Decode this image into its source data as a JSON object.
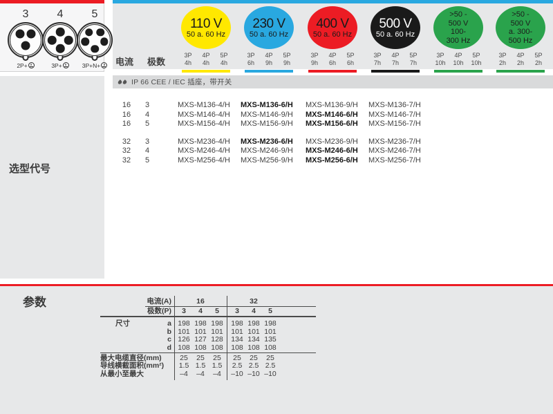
{
  "colors": {
    "accent_red": "#ec1c24",
    "accent_blue": "#29a8e0",
    "accent_yellow": "#ffe800",
    "accent_green": "#2aa34c",
    "accent_black": "#1a1a1a",
    "panel_gray": "#e7e8e9"
  },
  "connector_panel": {
    "items": [
      {
        "number": "3",
        "pins": 3,
        "label": "2P+"
      },
      {
        "number": "4",
        "pins": 4,
        "label": "3P+"
      },
      {
        "number": "5",
        "pins": 5,
        "label": "3P+N+"
      }
    ]
  },
  "selection": {
    "sidebar_label": "选型代号",
    "current_header": "电流",
    "poles_header": "极数",
    "voltage_groups": [
      {
        "lines": [
          "110 V",
          "50 a. 60 Hz"
        ],
        "color": "#ffe800",
        "text": "#1a1a1a",
        "cols": [
          [
            "3P",
            "4h"
          ],
          [
            "4P",
            "4h"
          ],
          [
            "5P",
            "4h"
          ]
        ]
      },
      {
        "lines": [
          "230 V",
          "50 a. 60 Hz"
        ],
        "color": "#29a8e0",
        "text": "#1a1a1a",
        "cols": [
          [
            "3P",
            "6h"
          ],
          [
            "4P",
            "9h"
          ],
          [
            "5P",
            "9h"
          ]
        ]
      },
      {
        "lines": [
          "400 V",
          "50 a. 60 Hz"
        ],
        "color": "#ec1c24",
        "text": "#1a1a1a",
        "cols": [
          [
            "3P",
            "9h"
          ],
          [
            "4P",
            "6h"
          ],
          [
            "5P",
            "6h"
          ]
        ]
      },
      {
        "lines": [
          "500 V",
          "50 a. 60 Hz"
        ],
        "color": "#1a1a1a",
        "text": "#ffffff",
        "cols": [
          [
            "3P",
            "7h"
          ],
          [
            "4P",
            "7h"
          ],
          [
            "5P",
            "7h"
          ]
        ]
      },
      {
        "lines": [
          ">50 -",
          "500 V",
          "100-",
          "300 Hz"
        ],
        "color": "#2aa34c",
        "text": "#1c1c1c",
        "cols": [
          [
            "3P",
            "10h"
          ],
          [
            "4P",
            "10h"
          ],
          [
            "5P",
            "10h"
          ]
        ]
      },
      {
        "lines": [
          ">50 -",
          "500 V",
          "a. 300-",
          "500 Hz"
        ],
        "color": "#2aa34c",
        "text": "#1c1c1c",
        "cols": [
          [
            "3P",
            "2h"
          ],
          [
            "4P",
            "2h"
          ],
          [
            "5P",
            "2h"
          ]
        ]
      }
    ],
    "section_title": "IP 66 CEE / IEC 插座，带开关",
    "rows": [
      {
        "current": "16",
        "poles": "3",
        "bold_index": 1,
        "models": [
          "MXS-M136-4/H",
          "MXS-M136-6/H",
          "MXS-M136-9/H",
          "MXS-M136-7/H"
        ]
      },
      {
        "current": "16",
        "poles": "4",
        "bold_index": 2,
        "models": [
          "MXS-M146-4/H",
          "MXS-M146-9/H",
          "MXS-M146-6/H",
          "MXS-M146-7/H"
        ]
      },
      {
        "current": "16",
        "poles": "5",
        "bold_index": 2,
        "models": [
          "MXS-M156-4/H",
          "MXS-M156-9/H",
          "MXS-M156-6/H",
          "MXS-M156-7/H"
        ]
      },
      {
        "current": "32",
        "poles": "3",
        "bold_index": 1,
        "models": [
          "MXS-M236-4/H",
          "MXS-M236-6/H",
          "MXS-M236-9/H",
          "MXS-M236-7/H"
        ]
      },
      {
        "current": "32",
        "poles": "4",
        "bold_index": 2,
        "models": [
          "MXS-M246-4/H",
          "MXS-M246-9/H",
          "MXS-M246-6/H",
          "MXS-M246-7/H"
        ]
      },
      {
        "current": "32",
        "poles": "5",
        "bold_index": 2,
        "models": [
          "MXS-M256-4/H",
          "MXS-M256-9/H",
          "MXS-M256-6/H",
          "MXS-M256-7/H"
        ]
      }
    ]
  },
  "params": {
    "sidebar_label": "参数",
    "current_label": "电流(A)",
    "poles_label": "极数(P)",
    "current_groups": [
      "16",
      "32"
    ],
    "pole_values": [
      "3",
      "4",
      "5",
      "3",
      "4",
      "5"
    ],
    "dims_label": "尺寸",
    "dim_rows": [
      {
        "key": "a",
        "values": [
          "198",
          "198",
          "198",
          "198",
          "198",
          "198"
        ]
      },
      {
        "key": "b",
        "values": [
          "101",
          "101",
          "101",
          "101",
          "101",
          "101"
        ]
      },
      {
        "key": "c",
        "values": [
          "126",
          "127",
          "128",
          "134",
          "134",
          "135"
        ]
      },
      {
        "key": "d",
        "values": [
          "108",
          "108",
          "108",
          "108",
          "108",
          "108"
        ]
      }
    ],
    "spec_rows": [
      {
        "key": "最大电缆直径(mm)",
        "values": [
          "25",
          "25",
          "25",
          "25",
          "25",
          "25"
        ]
      },
      {
        "key": "导线横截面积(mm²)",
        "values": [
          "1.5",
          "1.5",
          "1.5",
          "2.5",
          "2.5",
          "2.5"
        ]
      },
      {
        "key": "从最小至最大",
        "values": [
          "–4",
          "–4",
          "–4",
          "–10",
          "–10",
          "–10"
        ]
      }
    ]
  }
}
